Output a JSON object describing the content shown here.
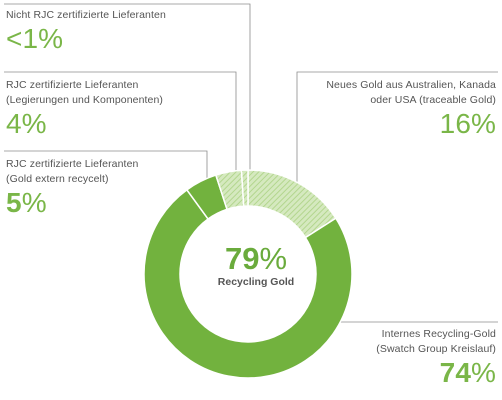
{
  "colors": {
    "green": "#72b23e",
    "green_light": "#a9d07f",
    "hatch_bg": "#d5e9bf",
    "hatch_line": "#b3d68e",
    "separator": "#ffffff",
    "leader": "#8c8c8c",
    "text": "#555555",
    "accent_text": "#7ab648"
  },
  "center": {
    "value": "79",
    "unit": "%",
    "label": "Recycling Gold"
  },
  "labels": {
    "nicht_rjc": {
      "line1": "Nicht RJC zertifizierte Lieferanten",
      "pct": "<1%"
    },
    "rjc_leg": {
      "line1": "RJC zertifizierte Lieferanten",
      "line2": "(Legierungen und Komponenten)",
      "pct": "4%"
    },
    "rjc_gold": {
      "line1": "RJC zertifizierte Lieferanten",
      "line2": "(Gold extern recycelt)",
      "pct_value": "5",
      "pct_unit": "%"
    },
    "neues": {
      "line1": "Neues Gold aus Australien, Kanada",
      "line2": "oder USA (traceable Gold)",
      "pct": "16%"
    },
    "intern": {
      "line1": "Internes Recycling-Gold",
      "line2": "(Swatch Group Kreislauf)",
      "pct_value": "74",
      "pct_unit": "%"
    }
  },
  "chart_data": {
    "type": "pie",
    "donut": true,
    "categories": [
      "Neues Gold aus Australien, Kanada oder USA (traceable Gold)",
      "Internes Recycling-Gold (Swatch Group Kreislauf)",
      "RJC zertifizierte Lieferanten (Gold extern recycelt)",
      "RJC zertifizierte Lieferanten (Legierungen und Komponenten)",
      "Nicht RJC zertifizierte Lieferanten"
    ],
    "values": [
      16,
      74,
      5,
      4,
      1
    ],
    "value_labels": [
      "16%",
      "74%",
      "5%",
      "4%",
      "<1%"
    ],
    "fills": [
      "hatch",
      "solid",
      "solid",
      "hatch",
      "hatch"
    ],
    "center_label": "79% Recycling Gold",
    "legend": "none"
  }
}
